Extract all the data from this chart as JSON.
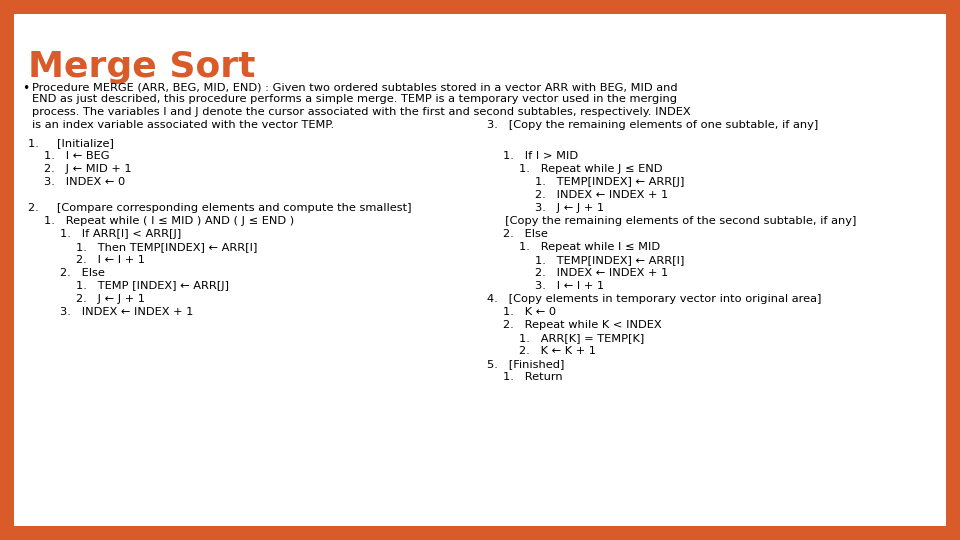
{
  "title": "Merge Sort",
  "title_color": "#D95B2A",
  "background_color": "#FFFFFF",
  "border_color": "#D95B2A",
  "title_fontsize": 26,
  "body_fontsize": 8.2,
  "bullet_intro": "Procedure MERGE (ARR, BEG, MID, END) : Given two ordered subtables stored in a vector ARR with BEG, MID and END as just described, this procedure performs a simple merge. TEMP is a temporary vector used in the merging process. The variables I and J denote the cursor associated with the first and second subtables, respectively. INDEX is an index variable associated with the vector TEMP.",
  "left_lines": [
    {
      "level": 0,
      "text": "1.     [Initialize]"
    },
    {
      "level": 1,
      "text": "1.   I ← BEG"
    },
    {
      "level": 1,
      "text": "2.   J ← MID + 1"
    },
    {
      "level": 1,
      "text": "3.   INDEX ← 0"
    },
    {
      "level": 0,
      "text": ""
    },
    {
      "level": 0,
      "text": "2.     [Compare corresponding elements and compute the smallest]"
    },
    {
      "level": 1,
      "text": "1.   Repeat while ( I ≤ MID ) AND ( J ≤ END )"
    },
    {
      "level": 2,
      "text": "1.   If ARR[I] < ARR[J]"
    },
    {
      "level": 3,
      "text": "1.   Then TEMP[INDEX] ← ARR[I]"
    },
    {
      "level": 3,
      "text": "2.   I ← I + 1"
    },
    {
      "level": 2,
      "text": "2.   Else"
    },
    {
      "level": 3,
      "text": "1.   TEMP [INDEX] ← ARR[J]"
    },
    {
      "level": 3,
      "text": "2.   J ← J + 1"
    },
    {
      "level": 2,
      "text": "3.   INDEX ← INDEX + 1"
    }
  ],
  "right_lines": [
    {
      "level": 0,
      "text": "3.   [Copy the remaining elements of one subtable, if any]"
    },
    {
      "level": 1,
      "text": "1.   If I > MID"
    },
    {
      "level": 2,
      "text": "1.   Repeat while J ≤ END"
    },
    {
      "level": 3,
      "text": "1.   TEMP[INDEX] ← ARR[J]"
    },
    {
      "level": 3,
      "text": "2.   INDEX ← INDEX + 1"
    },
    {
      "level": 3,
      "text": "3.   J ← J + 1"
    },
    {
      "level": 0,
      "text": "     [Copy the remaining elements of the second subtable, if any]"
    },
    {
      "level": 1,
      "text": "2.   Else"
    },
    {
      "level": 2,
      "text": "1.   Repeat while I ≤ MID"
    },
    {
      "level": 3,
      "text": "1.   TEMP[INDEX] ← ARR[I]"
    },
    {
      "level": 3,
      "text": "2.   INDEX ← INDEX + 1"
    },
    {
      "level": 3,
      "text": "3.   I ← I + 1"
    },
    {
      "level": 0,
      "text": "4.   [Copy elements in temporary vector into original area]"
    },
    {
      "level": 1,
      "text": "1.   K ← 0"
    },
    {
      "level": 1,
      "text": "2.   Repeat while K < INDEX"
    },
    {
      "level": 2,
      "text": "1.   ARR[K] = TEMP[K]"
    },
    {
      "level": 2,
      "text": "2.   K ← K + 1"
    },
    {
      "level": 0,
      "text": "5.   [Finished]"
    },
    {
      "level": 1,
      "text": "1.   Return"
    }
  ]
}
